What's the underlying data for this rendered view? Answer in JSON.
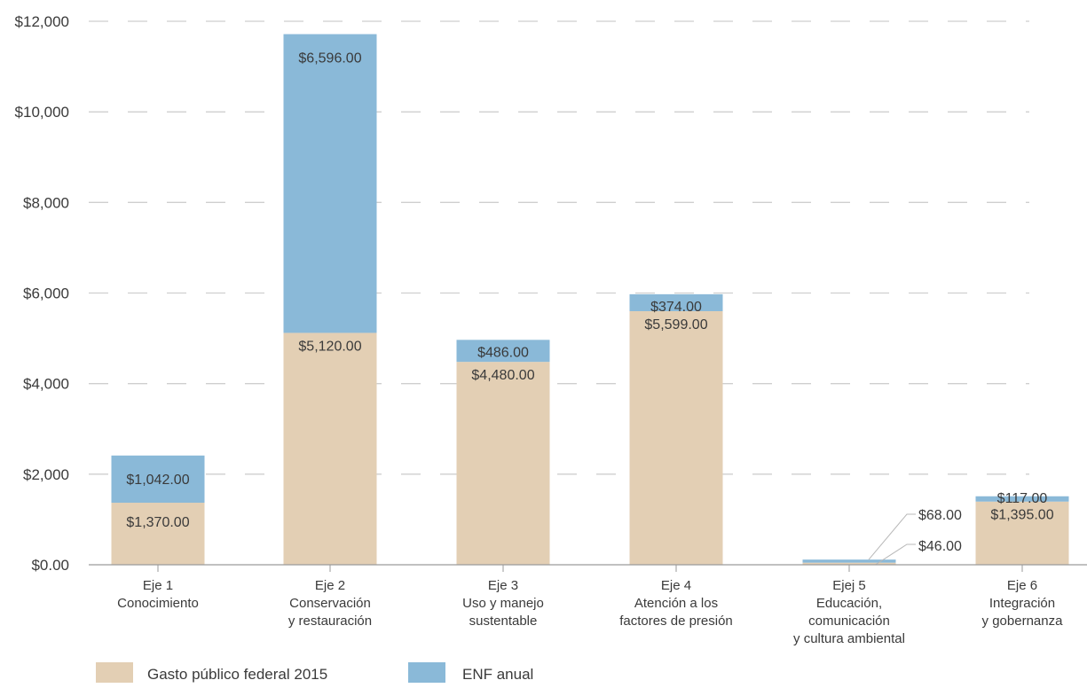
{
  "chart_data": {
    "type": "bar",
    "stacked": true,
    "categories": [
      [
        "Eje 1",
        "Conocimiento"
      ],
      [
        "Eje 2",
        "Conservación",
        "y restauración"
      ],
      [
        "Eje 3",
        "Uso y manejo",
        "sustentable"
      ],
      [
        "Eje 4",
        "Atención a los",
        "factores de presión"
      ],
      [
        "Ejej 5",
        "Educación,",
        "comunicación",
        "y cultura ambiental"
      ],
      [
        "Eje 6",
        "Integración",
        "y gobernanza"
      ]
    ],
    "series": [
      {
        "name": "Gasto público federal 2015",
        "color": "#e3cfb4",
        "values": [
          1370,
          5120,
          4480,
          5599,
          46,
          1395
        ],
        "labels": [
          "$1,370.00",
          "$5,120.00",
          "$4,480.00",
          "$5,599.00",
          "$46.00",
          "$1,395.00"
        ]
      },
      {
        "name": "ENF anual",
        "color": "#8ab9d8",
        "values": [
          1042,
          6596,
          486,
          374,
          68,
          117
        ],
        "labels": [
          "$1,042.00",
          "$6,596.00",
          "$486.00",
          "$374.00",
          "$68.00",
          "$117.00"
        ]
      }
    ],
    "y_ticks": [
      "$0.00",
      "$2,000",
      "$4,000",
      "$6,000",
      "$8,000",
      "$10,000",
      "$12,000"
    ],
    "ylim": [
      0,
      12000
    ],
    "grid": "dashed horizontal",
    "legend_position": "bottom-left"
  }
}
